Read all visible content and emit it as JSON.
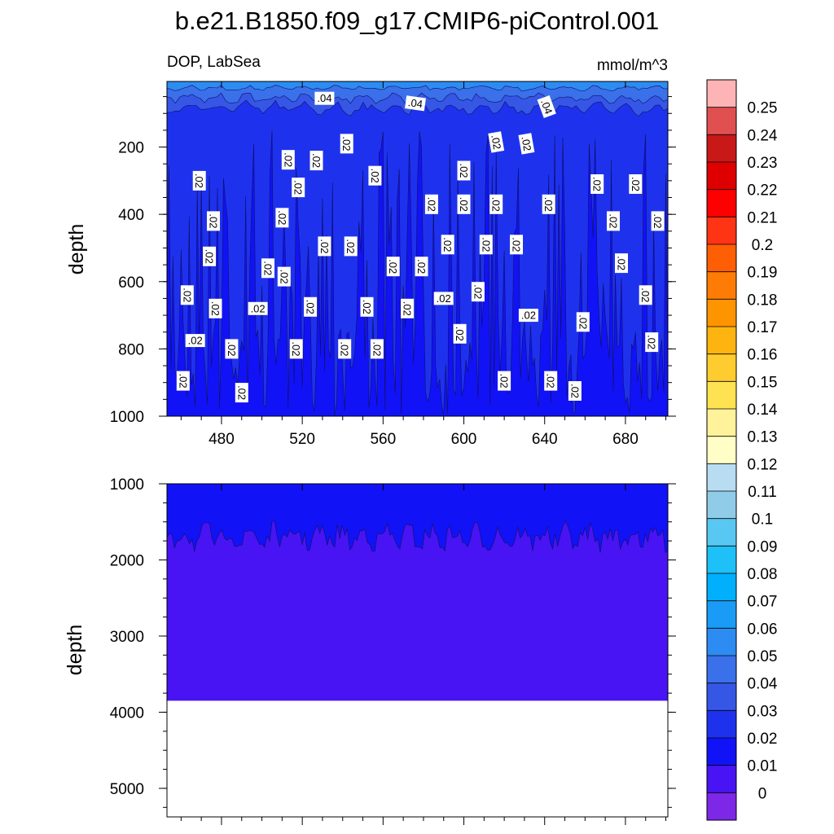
{
  "title": "b.e21.B1850.f09_g17.CMIP6-piControl.001",
  "chart_data": [
    {
      "type": "heatmap",
      "panel": "upper",
      "left_label": "DOP, LabSea",
      "right_label": "mmol/m^3",
      "xlabel": "",
      "ylabel": "depth",
      "xlim": [
        453,
        701
      ],
      "ylim": [
        1000,
        5
      ],
      "y_reversed": true,
      "xticks": [
        480,
        520,
        560,
        600,
        640,
        680
      ],
      "yticks": [
        200,
        400,
        600,
        800,
        1000
      ],
      "contour_labels": [
        {
          "text": ".04",
          "x": 531,
          "y": 55,
          "angle": 0
        },
        {
          "text": ".04",
          "x": 576,
          "y": 70,
          "angle": 8
        },
        {
          "text": ".04",
          "x": 641,
          "y": 80,
          "angle": 70
        },
        {
          "text": ".02",
          "x": 469,
          "y": 300,
          "angle": 90
        },
        {
          "text": ".02",
          "x": 476,
          "y": 420,
          "angle": 90
        },
        {
          "text": ".02",
          "x": 474,
          "y": 525,
          "angle": 90
        },
        {
          "text": ".02",
          "x": 463,
          "y": 640,
          "angle": 90
        },
        {
          "text": ".02",
          "x": 467,
          "y": 775,
          "angle": 0
        },
        {
          "text": ".02",
          "x": 461,
          "y": 895,
          "angle": 90
        },
        {
          "text": ".02",
          "x": 477,
          "y": 680,
          "angle": 90
        },
        {
          "text": ".02",
          "x": 485,
          "y": 800,
          "angle": 90
        },
        {
          "text": ".02",
          "x": 490,
          "y": 930,
          "angle": 90
        },
        {
          "text": ".02",
          "x": 503,
          "y": 560,
          "angle": 90
        },
        {
          "text": ".02",
          "x": 510,
          "y": 410,
          "angle": 90
        },
        {
          "text": ".02",
          "x": 498,
          "y": 680,
          "angle": 0
        },
        {
          "text": ".02",
          "x": 513,
          "y": 238,
          "angle": 90
        },
        {
          "text": ".02",
          "x": 511,
          "y": 585,
          "angle": 90
        },
        {
          "text": ".02",
          "x": 517,
          "y": 800,
          "angle": 90
        },
        {
          "text": ".02",
          "x": 518,
          "y": 320,
          "angle": 90
        },
        {
          "text": ".02",
          "x": 524,
          "y": 675,
          "angle": 90
        },
        {
          "text": ".02",
          "x": 527,
          "y": 240,
          "angle": 90
        },
        {
          "text": ".02",
          "x": 531,
          "y": 495,
          "angle": 90
        },
        {
          "text": ".02",
          "x": 542,
          "y": 190,
          "angle": 90
        },
        {
          "text": ".02",
          "x": 544,
          "y": 495,
          "angle": 90
        },
        {
          "text": ".02",
          "x": 541,
          "y": 800,
          "angle": 90
        },
        {
          "text": ".02",
          "x": 556,
          "y": 285,
          "angle": 90
        },
        {
          "text": ".02",
          "x": 552,
          "y": 675,
          "angle": 90
        },
        {
          "text": ".02",
          "x": 557,
          "y": 800,
          "angle": 90
        },
        {
          "text": ".02",
          "x": 565,
          "y": 555,
          "angle": 90
        },
        {
          "text": ".02",
          "x": 572,
          "y": 680,
          "angle": 90
        },
        {
          "text": ".02",
          "x": 579,
          "y": 555,
          "angle": 90
        },
        {
          "text": ".02",
          "x": 584,
          "y": 370,
          "angle": 90
        },
        {
          "text": ".02",
          "x": 592,
          "y": 490,
          "angle": 90
        },
        {
          "text": ".02",
          "x": 590,
          "y": 650,
          "angle": 0
        },
        {
          "text": ".02",
          "x": 598,
          "y": 755,
          "angle": 90
        },
        {
          "text": ".02",
          "x": 600,
          "y": 270,
          "angle": 90
        },
        {
          "text": ".02",
          "x": 600,
          "y": 370,
          "angle": 90
        },
        {
          "text": ".02",
          "x": 607,
          "y": 630,
          "angle": 90
        },
        {
          "text": ".02",
          "x": 611,
          "y": 490,
          "angle": 90
        },
        {
          "text": ".02",
          "x": 616,
          "y": 370,
          "angle": 90
        },
        {
          "text": ".02",
          "x": 616,
          "y": 185,
          "angle": 80
        },
        {
          "text": ".02",
          "x": 620,
          "y": 895,
          "angle": 90
        },
        {
          "text": ".02",
          "x": 626,
          "y": 490,
          "angle": 90
        },
        {
          "text": ".02",
          "x": 631,
          "y": 190,
          "angle": 80
        },
        {
          "text": ".02",
          "x": 632,
          "y": 700,
          "angle": 0
        },
        {
          "text": ".02",
          "x": 642,
          "y": 370,
          "angle": 90
        },
        {
          "text": ".02",
          "x": 643,
          "y": 895,
          "angle": 90
        },
        {
          "text": ".02",
          "x": 655,
          "y": 925,
          "angle": 90
        },
        {
          "text": ".02",
          "x": 659,
          "y": 720,
          "angle": 90
        },
        {
          "text": ".02",
          "x": 666,
          "y": 310,
          "angle": 90
        },
        {
          "text": ".02",
          "x": 674,
          "y": 420,
          "angle": 90
        },
        {
          "text": ".02",
          "x": 678,
          "y": 545,
          "angle": 90
        },
        {
          "text": ".02",
          "x": 685,
          "y": 310,
          "angle": 90
        },
        {
          "text": ".02",
          "x": 690,
          "y": 640,
          "angle": 90
        },
        {
          "text": ".02",
          "x": 693,
          "y": 780,
          "angle": 90
        },
        {
          "text": ".02",
          "x": 696,
          "y": 420,
          "angle": 90
        }
      ]
    },
    {
      "type": "heatmap",
      "panel": "lower",
      "xlabel": "",
      "ylabel": "depth",
      "xlim": [
        453,
        701
      ],
      "ylim": [
        5375,
        1000
      ],
      "y_reversed": true,
      "yticks": [
        1000,
        2000,
        3000,
        4000,
        5000
      ],
      "ocean_bottom_depth": 3850,
      "zero_contour_depth_mean": 1700,
      "zero_contour_depth_range": [
        1350,
        2050
      ]
    }
  ],
  "colorbar": {
    "levels": [
      "0",
      "0.01",
      "0.02",
      "0.03",
      "0.04",
      "0.05",
      "0.06",
      "0.07",
      "0.08",
      "0.09",
      "0.1",
      "0.11",
      "0.12",
      "0.13",
      "0.14",
      "0.15",
      "0.16",
      "0.17",
      "0.18",
      "0.19",
      "0.2",
      "0.21",
      "0.22",
      "0.23",
      "0.24",
      "0.25"
    ],
    "colors": [
      "#7c28e6",
      "#4814f4",
      "#1212f6",
      "#1e32ee",
      "#3656e6",
      "#3a70ea",
      "#2c8cf2",
      "#1a9cf6",
      "#00b0fc",
      "#1ec0f8",
      "#58c8f2",
      "#90cce8",
      "#b8dcf2",
      "#fefec6",
      "#fef29a",
      "#fee252",
      "#fecc2e",
      "#feb410",
      "#fe9400",
      "#fe7c06",
      "#fe5e04",
      "#fe3414",
      "#fe0000",
      "#de0000",
      "#c81818",
      "#e05050",
      "#feb4b4"
    ]
  }
}
